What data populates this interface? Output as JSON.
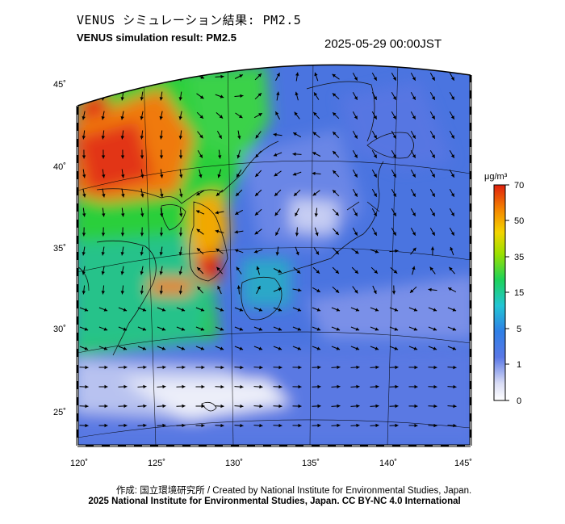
{
  "header": {
    "title_jp": "VENUS シミュレーション結果: PM2.5",
    "title_en": "VENUS simulation result: PM2.5",
    "timestamp": "2025-05-29 00:00JST"
  },
  "map": {
    "lon_ticks": [
      "120˚",
      "125˚",
      "130˚",
      "135˚",
      "140˚",
      "145˚"
    ],
    "lat_ticks": [
      "45˚",
      "40˚",
      "35˚",
      "30˚",
      "25˚"
    ]
  },
  "colorbar": {
    "unit": "μg/m³",
    "ticks": [
      "70",
      "50",
      "35",
      "15",
      "5",
      "1",
      "0"
    ]
  },
  "colors": {
    "background_sea": "#4a74e0",
    "high": "#e0260e",
    "mid": "#1fd130",
    "low": "#f4f4fa"
  },
  "footer": {
    "credit": "作成: 国立環境研究所 / Created by National Institute for Environmental Studies, Japan.",
    "copyright": "2025 National Institute for Environmental Studies, Japan. CC BY-NC 4.0 International"
  }
}
